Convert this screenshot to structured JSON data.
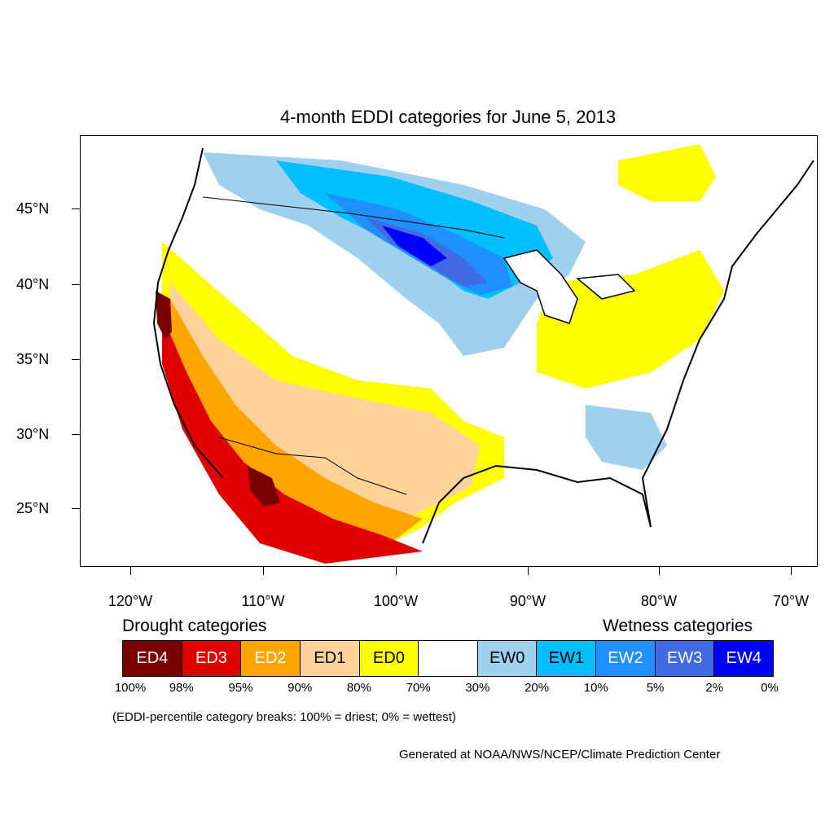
{
  "title": "4-month EDDI categories for June 5, 2013",
  "map": {
    "lat_labels": [
      "45°N",
      "40°N",
      "35°N",
      "30°N",
      "25°N"
    ],
    "lon_labels": [
      "120°W",
      "110°W",
      "100°W",
      "90°W",
      "80°W",
      "70°W"
    ]
  },
  "legend": {
    "drought_title": "Drought categories",
    "wetness_title": "Wetness categories",
    "categories": [
      {
        "label": "ED4",
        "color": "#7a0000",
        "text_color": "#ffffff"
      },
      {
        "label": "ED3",
        "color": "#e00000",
        "text_color": "#ffffff"
      },
      {
        "label": "ED2",
        "color": "#ffa500",
        "text_color": "#ffffff"
      },
      {
        "label": "ED1",
        "color": "#fdd39a",
        "text_color": "#000000"
      },
      {
        "label": "ED0",
        "color": "#ffff00",
        "text_color": "#000000"
      },
      {
        "label": "",
        "color": "#ffffff",
        "text_color": "#000000"
      },
      {
        "label": "EW0",
        "color": "#9fd0ee",
        "text_color": "#000000"
      },
      {
        "label": "EW1",
        "color": "#00bfff",
        "text_color": "#000000"
      },
      {
        "label": "EW2",
        "color": "#1e90ff",
        "text_color": "#ffffff"
      },
      {
        "label": "EW3",
        "color": "#4169e1",
        "text_color": "#ffffff"
      },
      {
        "label": "EW4",
        "color": "#0000ff",
        "text_color": "#ffffff"
      }
    ],
    "percentiles": [
      "100%",
      "98%",
      "95%",
      "90%",
      "80%",
      "70%",
      "30%",
      "20%",
      "10%",
      "5%",
      "2%",
      "0%"
    ]
  },
  "note": "(EDDI-percentile category breaks: 100% = driest; 0% = wettest)",
  "credit": "Generated at NOAA/NWS/NCEP/Climate Prediction Center"
}
